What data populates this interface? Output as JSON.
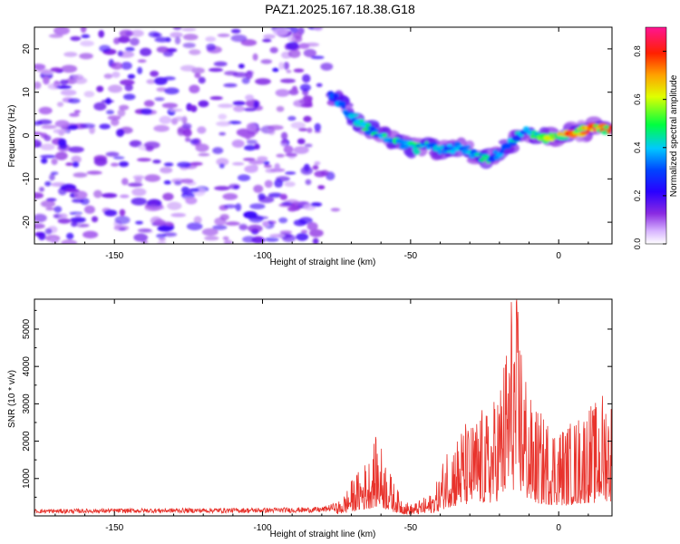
{
  "title": "PAZ1.2025.167.18.38.G18",
  "colors": {
    "snr_line": "#e8332c",
    "colormap": [
      "#ffffff",
      "#ad5cff",
      "#7a00ff",
      "#0000ff",
      "#00cfff",
      "#00ff3c",
      "#ffff00",
      "#ff8000",
      "#ff0000",
      "#ff1493"
    ]
  },
  "chart_data": [
    {
      "type": "heatmap",
      "title": "PAZ1.2025.167.18.38.G18",
      "xlabel": "Height of straight line (km)",
      "ylabel": "Frequency (Hz)",
      "xlim": [
        -177,
        18
      ],
      "ylim": [
        -25,
        25
      ],
      "xticks": [
        -150,
        -100,
        -50,
        0
      ],
      "yticks": [
        -20,
        -10,
        0,
        10,
        20
      ],
      "colorbar": {
        "label": "Normalized spectral amplitude",
        "range": [
          0.0,
          0.9
        ],
        "ticks": [
          "0.0",
          "0.2",
          "0.4",
          "0.6",
          "0.8"
        ]
      },
      "ridge": {
        "x": [
          -77,
          -72,
          -68,
          -64,
          -60,
          -56,
          -52,
          -48,
          -44,
          -40,
          -36,
          -32,
          -28,
          -24,
          -20,
          -16,
          -12,
          -8,
          -4,
          0,
          4,
          8,
          12,
          16,
          18
        ],
        "freq_hz": [
          9.5,
          6,
          3.5,
          1.5,
          0,
          -1,
          -2,
          -3,
          -2.5,
          -3.5,
          -3,
          -2.5,
          -4.5,
          -5.5,
          -4,
          -1.5,
          1,
          0,
          -0.5,
          0,
          0.5,
          1,
          2,
          1.5,
          1
        ],
        "amplitude": [
          0.35,
          0.4,
          0.45,
          0.5,
          0.45,
          0.5,
          0.45,
          0.5,
          0.5,
          0.45,
          0.5,
          0.45,
          0.45,
          0.5,
          0.4,
          0.45,
          0.4,
          0.55,
          0.65,
          0.75,
          0.8,
          0.82,
          0.88,
          0.85,
          0.8
        ]
      },
      "noise_region": {
        "x_range": [
          -177,
          -75
        ],
        "freq_range": [
          -25,
          25
        ],
        "amplitude": 0.15
      }
    },
    {
      "type": "line",
      "xlabel": "Height of straight line (km)",
      "ylabel": "SNR (10 * v/v)",
      "xlim": [
        -177,
        18
      ],
      "ylim": [
        0,
        5800
      ],
      "xticks": [
        -150,
        -100,
        -50,
        0
      ],
      "yticks": [
        1000,
        2000,
        3000,
        4000,
        5000
      ],
      "envelope": {
        "x": [
          -177,
          -140,
          -100,
          -80,
          -75,
          -72,
          -70,
          -68,
          -66,
          -64,
          -62,
          -60,
          -58,
          -56,
          -54,
          -52,
          -50,
          -48,
          -46,
          -44,
          -42,
          -40,
          -38,
          -36,
          -34,
          -32,
          -30,
          -28,
          -26,
          -24,
          -22,
          -20,
          -18,
          -16,
          -14,
          -12,
          -10,
          -8,
          -6,
          -4,
          -2,
          0,
          2,
          4,
          6,
          8,
          10,
          12,
          14,
          16,
          18
        ],
        "y": [
          150,
          170,
          180,
          200,
          300,
          600,
          900,
          1100,
          1300,
          1500,
          2000,
          1800,
          1400,
          900,
          600,
          400,
          300,
          350,
          450,
          500,
          700,
          1100,
          1800,
          2000,
          2100,
          2400,
          2300,
          2500,
          2700,
          2600,
          2900,
          3500,
          4200,
          5800,
          5500,
          4400,
          3000,
          2800,
          2600,
          2500,
          2400,
          2350,
          2300,
          2400,
          2500,
          2700,
          2900,
          2800,
          3100,
          3300,
          3000
        ]
      }
    }
  ]
}
